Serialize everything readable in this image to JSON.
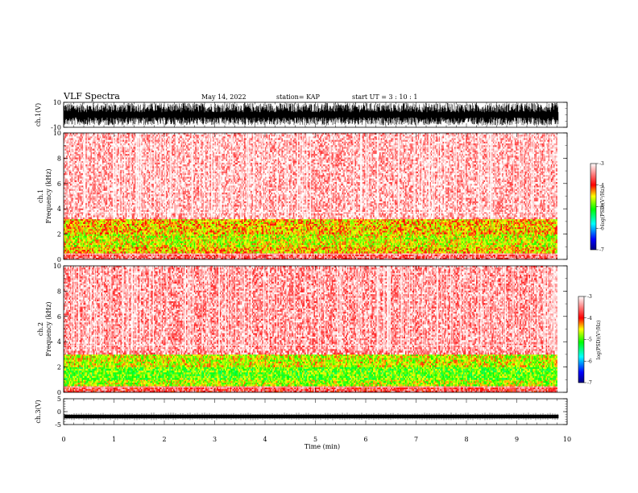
{
  "header": {
    "title": "VLF Spectra",
    "date": "May 14, 2022",
    "station": "station= KAP",
    "start": "start  UT =   3 : 10 : 1"
  },
  "chart_data": [
    {
      "type": "line",
      "name": "ch1-waveform",
      "ylabel": "ch.1(V)",
      "ylim": [
        -10,
        10
      ],
      "yticks": [
        "10",
        "-10"
      ],
      "xlim": [
        0,
        10
      ],
      "data_end_min": 9.83,
      "trace": "dense noise, roughly -8 to +9 V"
    },
    {
      "type": "heatmap",
      "name": "ch1-spectrogram",
      "ylabel": "ch.1 Frequency (kHz)",
      "ylim": [
        0,
        10
      ],
      "yticks": [
        "0",
        "2",
        "4",
        "6",
        "8",
        "10"
      ],
      "xlim": [
        0,
        10
      ],
      "bands_khz": [
        {
          "from": 0.0,
          "to": 0.5,
          "level": -3.6
        },
        {
          "from": 0.5,
          "to": 1.0,
          "level": -4.4
        },
        {
          "from": 1.0,
          "to": 2.0,
          "level": -4.6
        },
        {
          "from": 2.0,
          "to": 3.2,
          "level": -4.4
        },
        {
          "from": 3.2,
          "to": 10.0,
          "level": -3.3
        }
      ],
      "colorbar": {
        "label": "log(PSD)(V²/Hz)",
        "ticks": [
          "-3",
          "-4",
          "-5",
          "-6",
          "-7"
        ],
        "range": [
          -7,
          -3
        ]
      }
    },
    {
      "type": "heatmap",
      "name": "ch2-spectrogram",
      "ylabel": "ch.2 Frequency (kHz)",
      "ylim": [
        0,
        10
      ],
      "yticks": [
        "0",
        "2",
        "4",
        "6",
        "8",
        "10"
      ],
      "xlim": [
        0,
        10
      ],
      "bands_khz": [
        {
          "from": 0.0,
          "to": 0.5,
          "level": -3.7
        },
        {
          "from": 0.5,
          "to": 1.0,
          "level": -4.7
        },
        {
          "from": 1.0,
          "to": 2.0,
          "level": -4.9
        },
        {
          "from": 2.0,
          "to": 3.0,
          "level": -4.6
        },
        {
          "from": 3.0,
          "to": 10.0,
          "level": -3.4
        }
      ],
      "colorbar": {
        "label": "log(PSD)(V²/Hz)",
        "ticks": [
          "-3",
          "-4",
          "-5",
          "-6",
          "-7"
        ],
        "range": [
          -7,
          -3
        ]
      }
    },
    {
      "type": "line",
      "name": "ch3-waveform",
      "ylabel": "ch.3(V)",
      "ylim": [
        -5,
        5
      ],
      "yticks": [
        "5",
        "0",
        "-5"
      ],
      "xlim": [
        0,
        10
      ],
      "data_end_min": 9.83,
      "trace": "thick band near -2 V"
    }
  ],
  "x_axis": {
    "label": "Time (min)",
    "ticks": [
      "0",
      "1",
      "2",
      "3",
      "4",
      "5",
      "6",
      "7",
      "8",
      "9",
      "10"
    ]
  }
}
